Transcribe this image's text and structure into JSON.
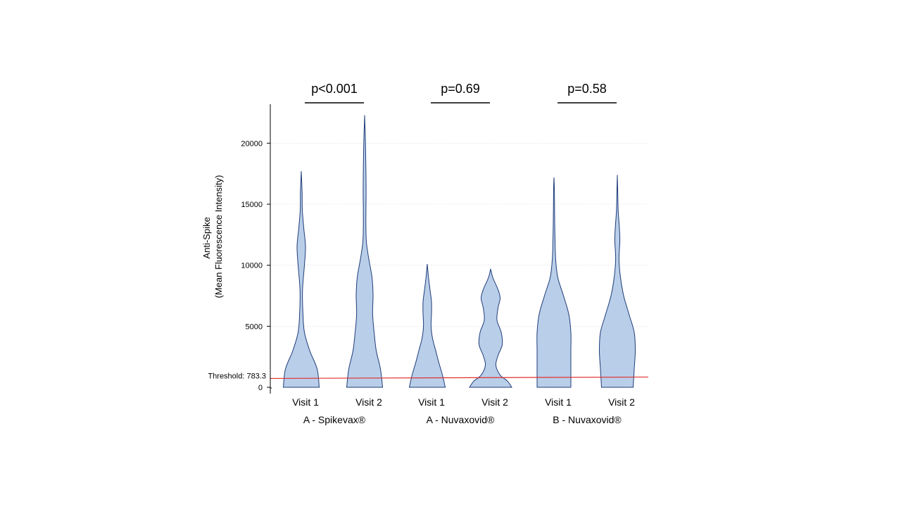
{
  "chart_data": {
    "type": "violin",
    "ylabel_lines": [
      "Anti-Spike",
      "(Mean Fluorescence Intensity)"
    ],
    "ylim": [
      0,
      22500
    ],
    "yticks": [
      0,
      5000,
      10000,
      15000,
      20000
    ],
    "threshold": {
      "label": "Threshold:",
      "value": 783.3,
      "value_label": "783.3",
      "color": "#e03030"
    },
    "violin_fill": "#b9cee8",
    "violin_stroke": "#1f3d7a",
    "grid_color": "#dddddd",
    "violins": [
      {
        "name": "Visit 1",
        "group": "A - Spikevax®",
        "min": 0,
        "max": 17700,
        "density": [
          [
            0,
            0.85
          ],
          [
            1500,
            0.75
          ],
          [
            3000,
            0.4
          ],
          [
            4500,
            0.15
          ],
          [
            6000,
            0.08
          ],
          [
            8000,
            0.06
          ],
          [
            10000,
            0.15
          ],
          [
            11500,
            0.2
          ],
          [
            13000,
            0.12
          ],
          [
            14500,
            0.05
          ],
          [
            16000,
            0.04
          ],
          [
            17700,
            0
          ]
        ]
      },
      {
        "name": "Visit 2",
        "group": "A - Spikevax®",
        "min": 0,
        "max": 22300,
        "density": [
          [
            0,
            0.85
          ],
          [
            1500,
            0.75
          ],
          [
            3000,
            0.55
          ],
          [
            4500,
            0.45
          ],
          [
            6000,
            0.38
          ],
          [
            7500,
            0.4
          ],
          [
            9000,
            0.35
          ],
          [
            10500,
            0.2
          ],
          [
            12000,
            0.08
          ],
          [
            14000,
            0.06
          ],
          [
            16000,
            0.07
          ],
          [
            18000,
            0.06
          ],
          [
            20000,
            0.04
          ],
          [
            22300,
            0
          ]
        ]
      },
      {
        "name": "Visit 1",
        "group": "A - Nuvaxovid®",
        "min": 0,
        "max": 10100,
        "density": [
          [
            0,
            0.85
          ],
          [
            1000,
            0.72
          ],
          [
            2000,
            0.55
          ],
          [
            3000,
            0.4
          ],
          [
            4000,
            0.25
          ],
          [
            5000,
            0.18
          ],
          [
            6000,
            0.2
          ],
          [
            7000,
            0.2
          ],
          [
            8000,
            0.13
          ],
          [
            9000,
            0.06
          ],
          [
            10100,
            0
          ]
        ]
      },
      {
        "name": "Visit 2",
        "group": "A - Nuvaxovid®",
        "min": 0,
        "max": 9700,
        "density": [
          [
            0,
            1
          ],
          [
            500,
            0.8
          ],
          [
            1000,
            0.45
          ],
          [
            1800,
            0.25
          ],
          [
            2600,
            0.35
          ],
          [
            3500,
            0.55
          ],
          [
            4500,
            0.5
          ],
          [
            5500,
            0.3
          ],
          [
            6500,
            0.35
          ],
          [
            7300,
            0.45
          ],
          [
            8000,
            0.35
          ],
          [
            9000,
            0.1
          ],
          [
            9700,
            0
          ]
        ]
      },
      {
        "name": "Visit 1",
        "group": "B - Nuvaxovid®",
        "min": 0,
        "max": 17200,
        "density": [
          [
            0,
            0.8
          ],
          [
            1500,
            0.8
          ],
          [
            3000,
            0.8
          ],
          [
            4500,
            0.8
          ],
          [
            6000,
            0.7
          ],
          [
            7500,
            0.45
          ],
          [
            9000,
            0.18
          ],
          [
            10500,
            0.08
          ],
          [
            12000,
            0.05
          ],
          [
            14000,
            0.03
          ],
          [
            16000,
            0.02
          ],
          [
            17200,
            0
          ]
        ]
      },
      {
        "name": "Visit 2",
        "group": "B - Nuvaxovid®",
        "min": 0,
        "max": 17400,
        "density": [
          [
            0,
            0.75
          ],
          [
            1500,
            0.8
          ],
          [
            3000,
            0.85
          ],
          [
            4500,
            0.8
          ],
          [
            6000,
            0.55
          ],
          [
            7500,
            0.3
          ],
          [
            9000,
            0.15
          ],
          [
            10500,
            0.08
          ],
          [
            12000,
            0.12
          ],
          [
            13000,
            0.1
          ],
          [
            14500,
            0.04
          ],
          [
            16000,
            0.02
          ],
          [
            17400,
            0
          ]
        ]
      }
    ],
    "categories": [
      "Visit 1",
      "Visit 2",
      "Visit 1",
      "Visit 2",
      "Visit 1",
      "Visit 2"
    ],
    "groups": [
      "A - Spikevax®",
      "A - Nuvaxovid®",
      "B - Nuvaxovid®"
    ],
    "comparisons": [
      {
        "group": "A - Spikevax®",
        "label": "p<0.001"
      },
      {
        "group": "A - Nuvaxovid®",
        "label": "p=0.69"
      },
      {
        "group": "B - Nuvaxovid®",
        "label": "p=0.58"
      }
    ]
  }
}
